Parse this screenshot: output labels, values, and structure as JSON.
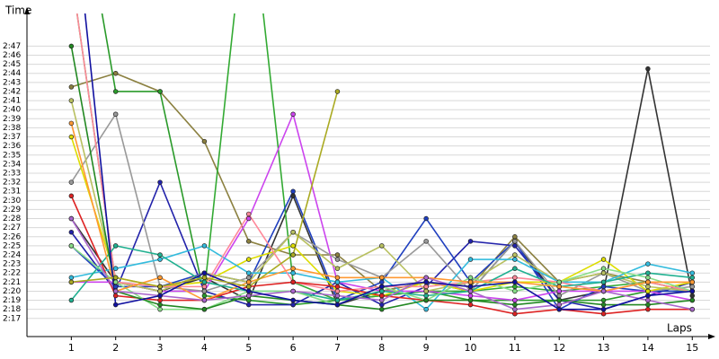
{
  "chart_data": {
    "type": "line",
    "x_label": "Laps",
    "y_label": "Time",
    "x": [
      1,
      2,
      3,
      4,
      5,
      6,
      7,
      8,
      9,
      10,
      11,
      12,
      13,
      14,
      15
    ],
    "xlim": [
      0,
      15.4
    ],
    "xticks": [
      1,
      2,
      3,
      4,
      5,
      6,
      7,
      8,
      9,
      10,
      11,
      12,
      13,
      14,
      15
    ],
    "ylim": [
      135,
      170.6
    ],
    "yticks": [
      {
        "value": 137,
        "label": "2:17"
      },
      {
        "value": 138,
        "label": "2:18"
      },
      {
        "value": 139,
        "label": "2:19"
      },
      {
        "value": 140,
        "label": "2:20"
      },
      {
        "value": 141,
        "label": "2:21"
      },
      {
        "value": 142,
        "label": "2:22"
      },
      {
        "value": 143,
        "label": "2:23"
      },
      {
        "value": 144,
        "label": "2:24"
      },
      {
        "value": 145,
        "label": "2:25"
      },
      {
        "value": 146,
        "label": "2:26"
      },
      {
        "value": 147,
        "label": "2:27"
      },
      {
        "value": 148,
        "label": "2:28"
      },
      {
        "value": 149,
        "label": "2:29"
      },
      {
        "value": 150,
        "label": "2:30"
      },
      {
        "value": 151,
        "label": "2:31"
      },
      {
        "value": 152,
        "label": "2:32"
      },
      {
        "value": 153,
        "label": "2:33"
      },
      {
        "value": 154,
        "label": "2:34"
      },
      {
        "value": 155,
        "label": "2:35"
      },
      {
        "value": 156,
        "label": "2:36"
      },
      {
        "value": 157,
        "label": "2:37"
      },
      {
        "value": 158,
        "label": "2:38"
      },
      {
        "value": 159,
        "label": "2:39"
      },
      {
        "value": 160,
        "label": "2:40"
      },
      {
        "value": 161,
        "label": "2:41"
      },
      {
        "value": 162,
        "label": "2:42"
      },
      {
        "value": 163,
        "label": "2:43"
      },
      {
        "value": 164,
        "label": "2:44"
      },
      {
        "value": 165,
        "label": "2:45"
      },
      {
        "value": 166,
        "label": "2:46"
      },
      {
        "value": 167,
        "label": "2:47"
      }
    ],
    "grid": true,
    "series": [
      {
        "color": "#333333",
        "values": [
          148,
          141,
          140,
          141.5,
          139,
          150.5,
          138.5,
          140,
          141,
          140,
          145.5,
          139,
          140,
          164.5,
          139.5
        ]
      },
      {
        "color": "#8b8040",
        "values": [
          162.5,
          164,
          162,
          156.5,
          145.5,
          144,
          144,
          140,
          141,
          140.5,
          146,
          141,
          142,
          141,
          141
        ]
      },
      {
        "color": "#2a9a2a",
        "values": [
          190,
          162,
          162,
          139.5,
          139,
          138.5,
          139,
          139.5,
          140,
          139,
          139,
          139,
          139,
          140,
          140
        ]
      },
      {
        "color": "#33aa33",
        "values": [
          175,
          141,
          140,
          140,
          185,
          141,
          139,
          139.5,
          140,
          140,
          140.5,
          140,
          140.5,
          141,
          140
        ]
      },
      {
        "color": "#2222aa",
        "values": [
          146.5,
          140,
          152,
          140,
          138.5,
          138.5,
          141,
          138.5,
          140.5,
          145.5,
          145,
          139,
          138,
          139.5,
          141
        ]
      },
      {
        "color": "#1f3fbf",
        "values": [
          145,
          140.5,
          140.5,
          142,
          141,
          151,
          139,
          141,
          148,
          141,
          145.5,
          138,
          140.5,
          140,
          140
        ]
      },
      {
        "color": "#cc44ee",
        "values": [
          141,
          141,
          140,
          140,
          148,
          159.5,
          141,
          140,
          140,
          139.5,
          139,
          140,
          140,
          140,
          139
        ]
      },
      {
        "color": "#999999",
        "values": [
          152,
          159.5,
          140.5,
          140,
          141.5,
          146.5,
          143.5,
          141.5,
          145.5,
          140,
          145.5,
          139.5,
          142,
          140,
          140.5
        ]
      },
      {
        "color": "#dddd00",
        "values": [
          157,
          141.5,
          140.5,
          141,
          143.5,
          145,
          140,
          139.5,
          141,
          140,
          141,
          141,
          143.5,
          140,
          141
        ]
      },
      {
        "color": "#b8c060",
        "values": [
          161,
          141,
          140,
          142,
          141,
          146.5,
          142.5,
          145,
          140,
          141,
          144,
          141,
          142,
          140.5,
          140
        ]
      },
      {
        "color": "#33bbdd",
        "values": [
          141.5,
          142.5,
          143.5,
          145,
          142,
          142,
          141,
          141.5,
          138,
          143.5,
          143.5,
          141,
          141,
          143,
          142
        ]
      },
      {
        "color": "#ff8899",
        "values": [
          175,
          141,
          140.5,
          140.5,
          148.5,
          141,
          140,
          140.5,
          140.5,
          141,
          141.5,
          141,
          140,
          141,
          140
        ]
      },
      {
        "color": "#dd2222",
        "values": [
          150.5,
          139.5,
          139,
          139,
          140.5,
          141,
          140.5,
          139.5,
          139,
          138.5,
          137.5,
          138,
          137.5,
          138,
          138
        ]
      },
      {
        "color": "#20b090",
        "values": [
          139,
          145,
          144,
          141,
          140,
          140,
          139,
          140,
          139.5,
          140,
          142.5,
          140.5,
          141,
          142,
          141.5
        ]
      },
      {
        "color": "#88dd88",
        "values": [
          145,
          141,
          138,
          138,
          140,
          140,
          138.5,
          140.5,
          139,
          141.5,
          140,
          141,
          142.5,
          141.5,
          140
        ]
      },
      {
        "color": "#228822",
        "values": [
          167,
          140,
          138.5,
          138,
          139.5,
          139,
          138.5,
          138,
          139,
          139,
          138.5,
          139,
          138.5,
          138.5,
          139
        ]
      },
      {
        "color": "#ff9933",
        "values": [
          158.5,
          140,
          141.5,
          139,
          141,
          142.5,
          141.5,
          141.5,
          141.5,
          141,
          141,
          140.5,
          140,
          141,
          141
        ]
      },
      {
        "color": "#aa66cc",
        "values": [
          148,
          140,
          139.5,
          139,
          139.5,
          140,
          139.5,
          139,
          141.5,
          140,
          138,
          138.5,
          140,
          139,
          138
        ]
      },
      {
        "color": "#1010a0",
        "values": [
          185,
          138.5,
          139.5,
          142,
          140,
          139,
          138.5,
          140.5,
          141,
          140.5,
          141,
          138,
          138,
          139.5,
          140
        ]
      },
      {
        "color": "#aaaa22",
        "values": [
          141,
          141.5,
          140.5,
          141.5,
          140.5,
          144,
          162,
          null,
          null,
          null,
          null,
          null,
          null,
          null,
          null
        ]
      }
    ]
  }
}
